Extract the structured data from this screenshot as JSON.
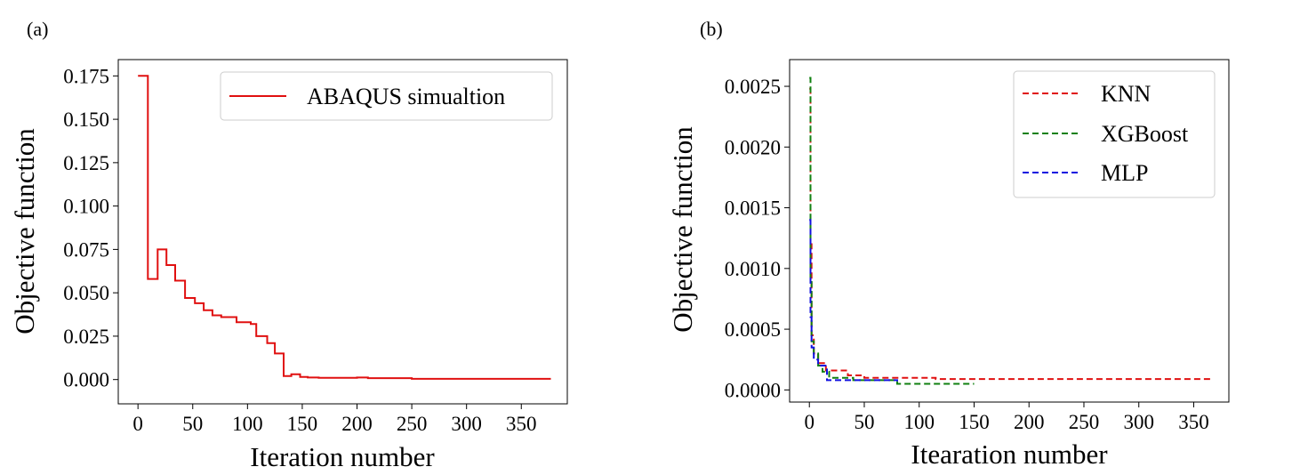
{
  "panels": [
    {
      "panel_label": "(a)",
      "chart_data": {
        "type": "line",
        "title": "",
        "xlabel": "Iteration number",
        "ylabel": "Objective function",
        "xlim": [
          -18,
          392
        ],
        "ylim": [
          -0.014,
          0.1844
        ],
        "xticks": [
          0,
          50,
          100,
          150,
          200,
          250,
          300,
          350
        ],
        "xtick_labels": [
          "0",
          "50",
          "100",
          "150",
          "200",
          "250",
          "300",
          "350"
        ],
        "yticks": [
          0.0,
          0.025,
          0.05,
          0.075,
          0.1,
          0.125,
          0.15,
          0.175
        ],
        "ytick_labels": [
          "0.000",
          "0.025",
          "0.050",
          "0.075",
          "0.100",
          "0.125",
          "0.150",
          "0.175"
        ],
        "grid": false,
        "legend_position": "top-right",
        "series": [
          {
            "name": "ABAQUS simualtion",
            "color": "#e01010",
            "style": "solid",
            "step": true,
            "x": [
              0,
              9,
              18,
              26,
              34,
              43,
              52,
              60,
              68,
              76,
              90,
              103,
              108,
              118,
              125,
              133,
              140,
              148,
              155,
              165,
              200,
              210,
              250,
              377
            ],
            "y": [
              0.175,
              0.058,
              0.075,
              0.066,
              0.057,
              0.047,
              0.044,
              0.04,
              0.037,
              0.036,
              0.033,
              0.032,
              0.025,
              0.021,
              0.015,
              0.002,
              0.003,
              0.0015,
              0.0012,
              0.001,
              0.0012,
              0.0008,
              0.0004,
              0.0004
            ]
          }
        ]
      }
    },
    {
      "panel_label": "(b)",
      "chart_data": {
        "type": "line",
        "title": "",
        "xlabel": "Itearation number",
        "ylabel": "Objective function",
        "xlim": [
          -18,
          382
        ],
        "ylim": [
          -0.0001,
          0.00272
        ],
        "xticks": [
          0,
          50,
          100,
          150,
          200,
          250,
          300,
          350
        ],
        "xtick_labels": [
          "0",
          "50",
          "100",
          "150",
          "200",
          "250",
          "300",
          "350"
        ],
        "yticks": [
          0.0,
          0.0005,
          0.001,
          0.0015,
          0.002,
          0.0025
        ],
        "ytick_labels": [
          "0.0000",
          "0.0005",
          "0.0010",
          "0.0015",
          "0.0020",
          "0.0025"
        ],
        "grid": false,
        "legend_position": "top-right",
        "series": [
          {
            "name": "KNN",
            "color": "#e01010",
            "style": "dashed",
            "step": true,
            "x": [
              0,
              1,
              2,
              4,
              8,
              15,
              35,
              50,
              80,
              115,
              365
            ],
            "y": [
              0.00248,
              0.0012,
              0.00045,
              0.0003,
              0.00022,
              0.00016,
              0.00012,
              0.0001,
              0.0001,
              9e-05,
              9e-05
            ]
          },
          {
            "name": "XGBoost",
            "color": "#108010",
            "style": "dashed",
            "step": true,
            "x": [
              0,
              1,
              2,
              4,
              8,
              12,
              18,
              40,
              80,
              150
            ],
            "y": [
              0.00257,
              0.0009,
              0.0004,
              0.0003,
              0.0002,
              0.00015,
              0.0001,
              8e-05,
              5e-05,
              5e-05
            ]
          },
          {
            "name": "MLP",
            "color": "#1010e0",
            "style": "dashed",
            "step": true,
            "x": [
              0,
              1,
              2,
              4,
              8,
              16,
              40,
              60,
              80
            ],
            "y": [
              0.0014,
              0.0006,
              0.00035,
              0.00025,
              0.0002,
              8e-05,
              8e-05,
              8e-05,
              7e-05
            ]
          }
        ]
      }
    }
  ]
}
